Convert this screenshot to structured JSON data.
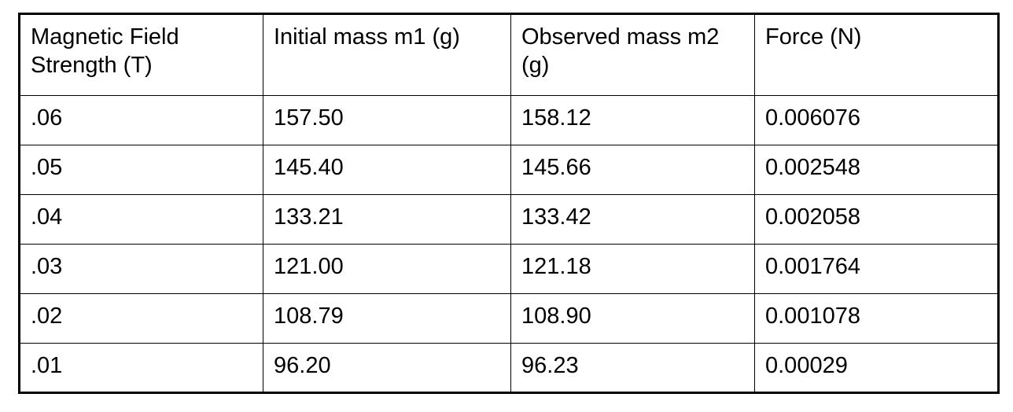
{
  "page": {
    "background_color": "#ffffff",
    "table_border_color": "#000000",
    "text_color": "#000000"
  },
  "table": {
    "columns": [
      "Magnetic Field Strength (T)",
      "Initial mass m1 (g)",
      "Observed mass m2 (g)",
      "Force (N)"
    ],
    "rows": [
      [
        ".06",
        "157.50",
        "158.12",
        "0.006076"
      ],
      [
        ".05",
        "145.40",
        "145.66",
        "0.002548"
      ],
      [
        ".04",
        "133.21",
        "133.42",
        "0.002058"
      ],
      [
        ".03",
        "121.00",
        "121.18",
        "0.001764"
      ],
      [
        ".02",
        "108.79",
        "108.90",
        "0.001078"
      ],
      [
        ".01",
        "96.20",
        "96.23",
        "0.00029"
      ]
    ]
  },
  "chart_data": {
    "type": "table",
    "title": "",
    "columns": [
      "Magnetic Field Strength (T)",
      "Initial mass m1 (g)",
      "Observed mass m2 (g)",
      "Force (N)"
    ],
    "rows": [
      [
        0.06,
        157.5,
        158.12,
        0.006076
      ],
      [
        0.05,
        145.4,
        145.66,
        0.002548
      ],
      [
        0.04,
        133.21,
        133.42,
        0.002058
      ],
      [
        0.03,
        121.0,
        121.18,
        0.001764
      ],
      [
        0.02,
        108.79,
        108.9,
        0.001078
      ],
      [
        0.01,
        96.2,
        96.23,
        0.00029
      ]
    ]
  }
}
